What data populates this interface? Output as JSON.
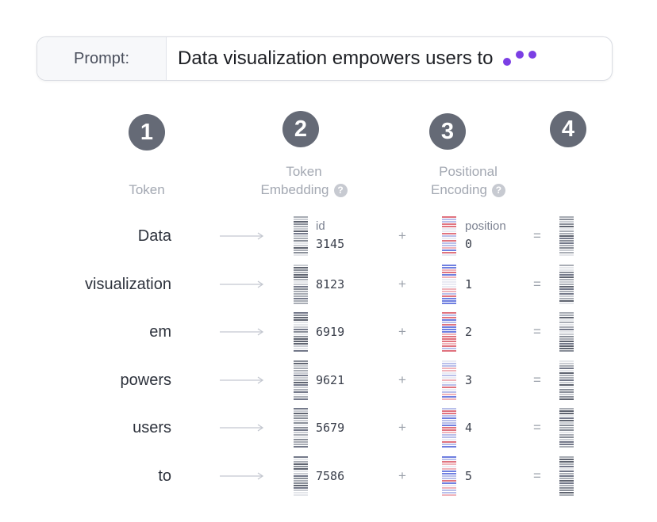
{
  "prompt": {
    "label": "Prompt:",
    "text": "Data visualization empowers users to",
    "typing_indicator_color": "#7b3fe4"
  },
  "steps": [
    "1",
    "2",
    "3",
    "4"
  ],
  "columns": {
    "token": "Token",
    "token_embedding": [
      "Token",
      "Embedding"
    ],
    "positional_encoding": [
      "Positional",
      "Encoding"
    ],
    "help_glyph": "?"
  },
  "row_labels": {
    "id": "id",
    "position": "position",
    "plus": "+",
    "equals": "="
  },
  "rows": [
    {
      "token": "Data",
      "id": "3145",
      "position": "0"
    },
    {
      "token": "visualization",
      "id": "8123",
      "position": "1"
    },
    {
      "token": "em",
      "id": "6919",
      "position": "2"
    },
    {
      "token": "powers",
      "id": "9621",
      "position": "3"
    },
    {
      "token": "users",
      "id": "5679",
      "position": "4"
    },
    {
      "token": "to",
      "id": "7586",
      "position": "5"
    }
  ],
  "colors": {
    "badge": "#656a76",
    "embedding_stripes": "#6f7480",
    "positional_red": "#e0737f",
    "positional_blue": "#6f7fe0"
  }
}
